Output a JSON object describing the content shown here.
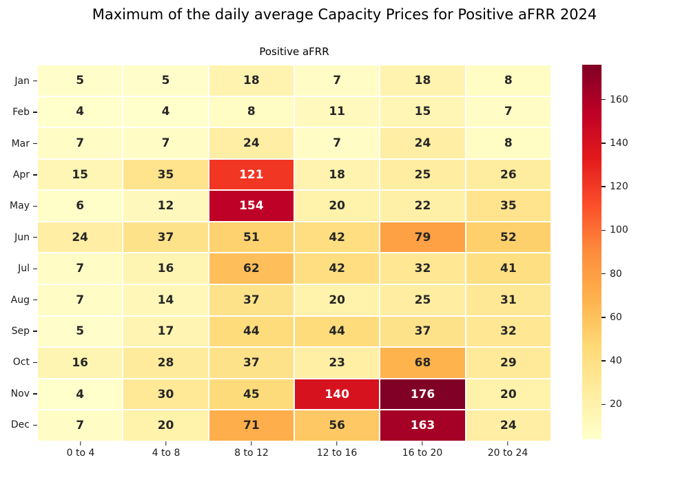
{
  "title": "Maximum of the daily average Capacity Prices for Positive aFRR 2024",
  "chart_data": {
    "type": "heatmap",
    "title": "Maximum of the daily average Capacity Prices for Positive aFRR 2024",
    "axes_title": "Positive aFRR",
    "x_categories": [
      "0 to 4",
      "4 to 8",
      "8 to 12",
      "12 to 16",
      "16 to 20",
      "20 to 24"
    ],
    "y_categories": [
      "Jan",
      "Feb",
      "Mar",
      "Apr",
      "May",
      "Jun",
      "Jul",
      "Aug",
      "Sep",
      "Oct",
      "Nov",
      "Dec"
    ],
    "values": [
      [
        5,
        5,
        18,
        7,
        18,
        8
      ],
      [
        4,
        4,
        8,
        11,
        15,
        7
      ],
      [
        7,
        7,
        24,
        7,
        24,
        8
      ],
      [
        15,
        35,
        121,
        18,
        25,
        26
      ],
      [
        6,
        12,
        154,
        20,
        22,
        35
      ],
      [
        24,
        37,
        51,
        42,
        79,
        52
      ],
      [
        7,
        16,
        62,
        42,
        32,
        41
      ],
      [
        7,
        14,
        37,
        20,
        25,
        31
      ],
      [
        5,
        17,
        44,
        44,
        37,
        32
      ],
      [
        16,
        28,
        37,
        23,
        68,
        29
      ],
      [
        4,
        30,
        45,
        140,
        176,
        20
      ],
      [
        7,
        20,
        71,
        56,
        163,
        24
      ]
    ],
    "vmin": 4,
    "vmax": 176,
    "annotated": true,
    "grid_on": false,
    "colormap": "YlOrRd",
    "colormap_stops": [
      "#ffffcc",
      "#ffeda0",
      "#fed976",
      "#feb24c",
      "#fd8d3c",
      "#fc4e2a",
      "#e31a1c",
      "#bd0026",
      "#800026"
    ],
    "colorbar_position": "right",
    "colorbar_ticks": [
      20,
      40,
      60,
      80,
      100,
      120,
      140,
      160
    ],
    "annot_dark_color": "#262626",
    "annot_light_color": "#ffffff",
    "gridline_color": "#ffffff",
    "background_color": "#ffffff"
  }
}
